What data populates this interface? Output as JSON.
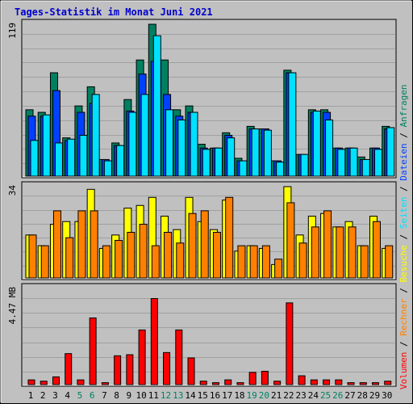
{
  "title": "Tages-Statistik im Monat Juni 2021",
  "colors": {
    "background": "#c0c0c0",
    "title": "#0000cc",
    "grid": "#a0a0a0",
    "anfragen": "#008060",
    "dateien": "#0040ff",
    "seiten": "#00e0ff",
    "besuche": "#ffff00",
    "rechner": "#ff8000",
    "volumen": "#ff0000",
    "weekday_label": "#000000",
    "weekend_label": "#008060"
  },
  "legend": [
    {
      "key": "anfragen",
      "label": "Anfragen"
    },
    {
      "key": "slash1",
      "label": "/"
    },
    {
      "key": "dateien",
      "label": "Dateien"
    },
    {
      "key": "slash2",
      "label": "/"
    },
    {
      "key": "seiten",
      "label": "Seiten"
    },
    {
      "key": "slash3",
      "label": "/"
    },
    {
      "key": "besuche",
      "label": "Besuche"
    },
    {
      "key": "slash4",
      "label": "/"
    },
    {
      "key": "rechner",
      "label": "Rechner"
    },
    {
      "key": "slash5",
      "label": "/"
    },
    {
      "key": "volumen",
      "label": "Volumen"
    }
  ],
  "chart_data": [
    {
      "type": "bar",
      "panel": "requests",
      "ymax_label": "119",
      "ylim": [
        0,
        119
      ],
      "categories": [
        "1",
        "2",
        "3",
        "4",
        "5",
        "6",
        "7",
        "8",
        "9",
        "10",
        "11",
        "12",
        "13",
        "14",
        "15",
        "16",
        "17",
        "18",
        "19",
        "20",
        "21",
        "22",
        "23",
        "24",
        "25",
        "26",
        "27",
        "28",
        "29",
        "30"
      ],
      "weekend": [
        false,
        false,
        false,
        false,
        true,
        true,
        false,
        false,
        false,
        false,
        false,
        true,
        true,
        false,
        false,
        false,
        false,
        false,
        true,
        true,
        false,
        false,
        false,
        false,
        true,
        true,
        false,
        false,
        false,
        false
      ],
      "series": [
        {
          "name": "Anfragen",
          "key": "anfragen",
          "values": [
            52,
            50,
            81,
            30,
            55,
            70,
            13,
            26,
            60,
            91,
            119,
            91,
            52,
            55,
            25,
            22,
            34,
            14,
            39,
            37,
            12,
            83,
            17,
            52,
            52,
            22,
            22,
            15,
            22,
            39
          ]
        },
        {
          "name": "Dateien",
          "key": "dateien",
          "values": [
            47,
            47,
            67,
            28,
            50,
            57,
            13,
            24,
            51,
            80,
            90,
            64,
            47,
            50,
            22,
            22,
            32,
            12,
            37,
            37,
            12,
            81,
            17,
            50,
            50,
            22,
            22,
            13,
            22,
            37
          ]
        },
        {
          "name": "Seiten",
          "key": "seiten",
          "values": [
            28,
            48,
            26,
            29,
            32,
            64,
            12,
            24,
            50,
            64,
            110,
            52,
            44,
            50,
            21,
            22,
            30,
            12,
            37,
            36,
            11,
            81,
            17,
            51,
            44,
            21,
            22,
            13,
            21,
            38
          ]
        }
      ]
    },
    {
      "type": "bar",
      "panel": "visits",
      "ymax_label": "34",
      "ylim": [
        0,
        34
      ],
      "categories": [
        "1",
        "2",
        "3",
        "4",
        "5",
        "6",
        "7",
        "8",
        "9",
        "10",
        "11",
        "12",
        "13",
        "14",
        "15",
        "16",
        "17",
        "18",
        "19",
        "20",
        "21",
        "22",
        "23",
        "24",
        "25",
        "26",
        "27",
        "28",
        "29",
        "30"
      ],
      "series": [
        {
          "name": "Besuche",
          "key": "besuche",
          "values": [
            16,
            12,
            20,
            21,
            21,
            33,
            11,
            16,
            26,
            27,
            30,
            23,
            18,
            30,
            21,
            18,
            29,
            10,
            12,
            11,
            5,
            34,
            16,
            23,
            24,
            19,
            21,
            12,
            23,
            11
          ]
        },
        {
          "name": "Rechner",
          "key": "rechner",
          "values": [
            16,
            12,
            25,
            15,
            25,
            25,
            12,
            14,
            17,
            20,
            12,
            17,
            13,
            24,
            25,
            17,
            30,
            12,
            12,
            12,
            7,
            28,
            13,
            19,
            25,
            19,
            19,
            12,
            21,
            12
          ]
        }
      ]
    },
    {
      "type": "bar",
      "panel": "volume",
      "ymax_label": "4.47 MB",
      "unit": "MB",
      "ylim": [
        0,
        4.47
      ],
      "categories": [
        "1",
        "2",
        "3",
        "4",
        "5",
        "6",
        "7",
        "8",
        "9",
        "10",
        "11",
        "12",
        "13",
        "14",
        "15",
        "16",
        "17",
        "18",
        "19",
        "20",
        "21",
        "22",
        "23",
        "24",
        "25",
        "26",
        "27",
        "28",
        "29",
        "30"
      ],
      "series": [
        {
          "name": "Volumen",
          "key": "volumen",
          "values": [
            0.22,
            0.16,
            0.36,
            1.44,
            0.22,
            3.1,
            0.09,
            1.34,
            1.39,
            2.54,
            4.0,
            1.49,
            2.54,
            1.24,
            0.16,
            0.09,
            0.22,
            0.09,
            0.57,
            0.62,
            0.16,
            3.8,
            0.41,
            0.22,
            0.22,
            0.22,
            0.09,
            0.09,
            0.09,
            0.16
          ]
        }
      ]
    }
  ]
}
